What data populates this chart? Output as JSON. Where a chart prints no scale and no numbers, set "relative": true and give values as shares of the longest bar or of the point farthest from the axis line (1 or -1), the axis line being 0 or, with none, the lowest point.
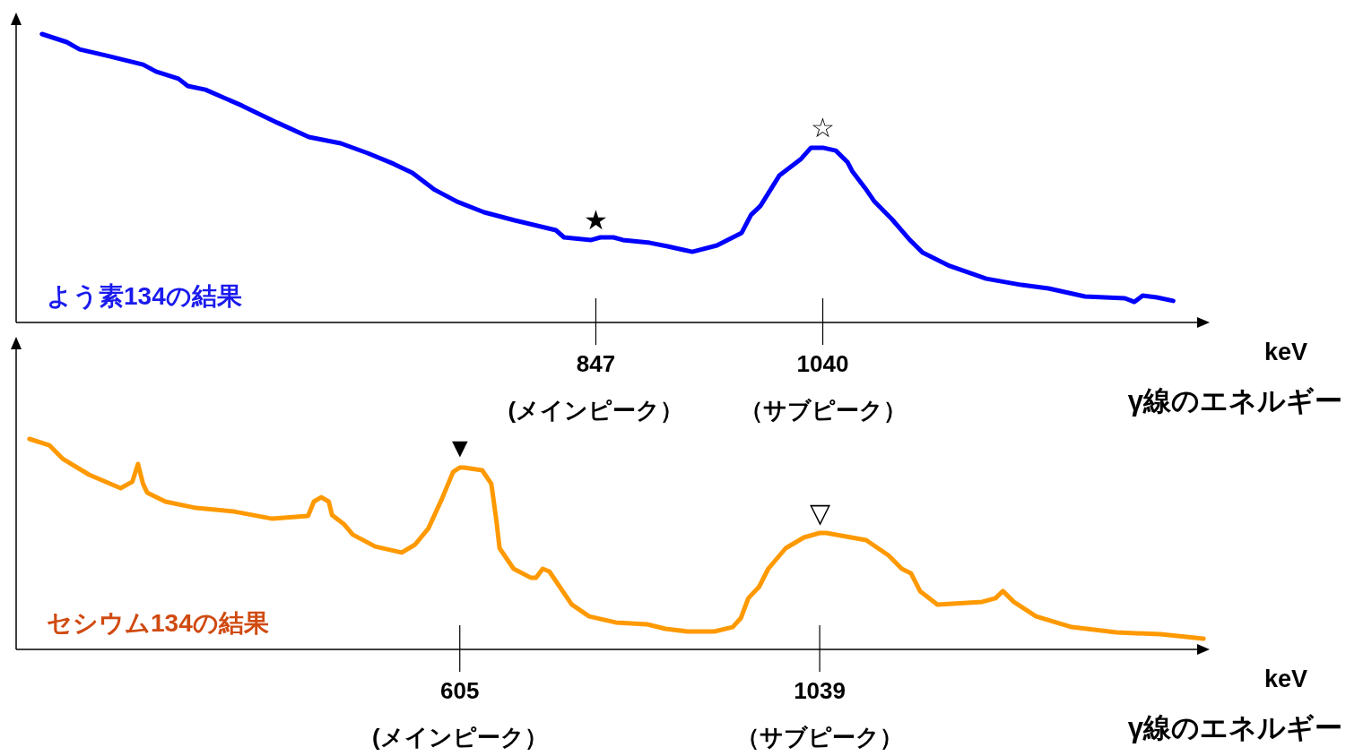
{
  "chart_data": [
    {
      "type": "line",
      "title": "よう素134の結果",
      "relative": true,
      "tick_labels": "x",
      "xlabel": "keV",
      "xlim": [
        354,
        1366
      ],
      "xticks": [
        {
          "value": 847,
          "label": "847\n(メインピーク）"
        },
        {
          "value": 1040,
          "label": "1040\n（サブピーク）"
        }
      ],
      "annotations": [
        {
          "text": "★",
          "x": 847,
          "y": 0.286
        },
        {
          "text": "☆",
          "x": 1040,
          "y": 0.606
        },
        "γ線のエネルギー"
      ],
      "series": [
        {
          "color": "#0000ff",
          "x": [
            376,
            397,
            408,
            431,
            462,
            473,
            492,
            500,
            515,
            546,
            576,
            603,
            630,
            653,
            675,
            691,
            698,
            710,
            729,
            752,
            778,
            813,
            820,
            843,
            851,
            862,
            870,
            893,
            908,
            929,
            950,
            971,
            979,
            987,
            1003,
            1021,
            1030,
            1040,
            1051,
            1061,
            1065,
            1076,
            1084,
            1099,
            1114,
            1125,
            1148,
            1179,
            1209,
            1232,
            1263,
            1297,
            1305,
            1312,
            1324,
            1338
          ],
          "values": [
            1.0,
            0.972,
            0.947,
            0.925,
            0.894,
            0.87,
            0.845,
            0.82,
            0.807,
            0.752,
            0.693,
            0.643,
            0.621,
            0.587,
            0.55,
            0.519,
            0.497,
            0.46,
            0.419,
            0.382,
            0.354,
            0.32,
            0.295,
            0.286,
            0.295,
            0.295,
            0.286,
            0.276,
            0.264,
            0.245,
            0.267,
            0.311,
            0.373,
            0.404,
            0.509,
            0.565,
            0.606,
            0.606,
            0.596,
            0.556,
            0.525,
            0.466,
            0.419,
            0.357,
            0.286,
            0.242,
            0.196,
            0.152,
            0.13,
            0.118,
            0.09,
            0.084,
            0.071,
            0.093,
            0.087,
            0.075
          ]
        }
      ]
    },
    {
      "type": "line",
      "title": "セシウム134の結果",
      "relative": true,
      "tick_labels": "x",
      "xlabel": "keV",
      "xlim": [
        70,
        1505
      ],
      "xticks": [
        {
          "value": 605,
          "label": "605\n(メインピーク）"
        },
        {
          "value": 1039,
          "label": "1039\n（サブピーク）"
        }
      ],
      "annotations": [
        {
          "text": "▼",
          "x": 605,
          "y": 0.864
        },
        {
          "text": "▽",
          "x": 1039,
          "y": 0.553
        },
        "γ線のエネルギー"
      ],
      "series": [
        {
          "color": "#ff9900",
          "x": [
            86,
            110,
            126,
            158,
            196,
            210,
            217,
            223,
            228,
            250,
            287,
            333,
            379,
            422,
            429,
            438,
            447,
            451,
            465,
            476,
            503,
            535,
            551,
            567,
            583,
            597,
            605,
            610,
            632,
            643,
            649,
            653,
            670,
            691,
            697,
            705,
            713,
            740,
            761,
            793,
            831,
            853,
            880,
            912,
            934,
            944,
            953,
            966,
            977,
            998,
            1020,
            1039,
            1047,
            1095,
            1122,
            1138,
            1149,
            1160,
            1181,
            1235,
            1251,
            1260,
            1273,
            1300,
            1343,
            1397,
            1450,
            1502
          ],
          "values": [
            1.0,
            0.97,
            0.906,
            0.83,
            0.766,
            0.796,
            0.881,
            0.787,
            0.745,
            0.702,
            0.672,
            0.655,
            0.621,
            0.634,
            0.702,
            0.723,
            0.702,
            0.638,
            0.596,
            0.545,
            0.489,
            0.46,
            0.498,
            0.574,
            0.711,
            0.843,
            0.864,
            0.864,
            0.851,
            0.787,
            0.617,
            0.481,
            0.383,
            0.34,
            0.34,
            0.383,
            0.37,
            0.213,
            0.157,
            0.128,
            0.119,
            0.098,
            0.085,
            0.085,
            0.106,
            0.149,
            0.243,
            0.298,
            0.383,
            0.481,
            0.532,
            0.553,
            0.553,
            0.519,
            0.447,
            0.383,
            0.362,
            0.277,
            0.213,
            0.226,
            0.243,
            0.277,
            0.226,
            0.157,
            0.106,
            0.081,
            0.072,
            0.051
          ]
        }
      ]
    }
  ]
}
